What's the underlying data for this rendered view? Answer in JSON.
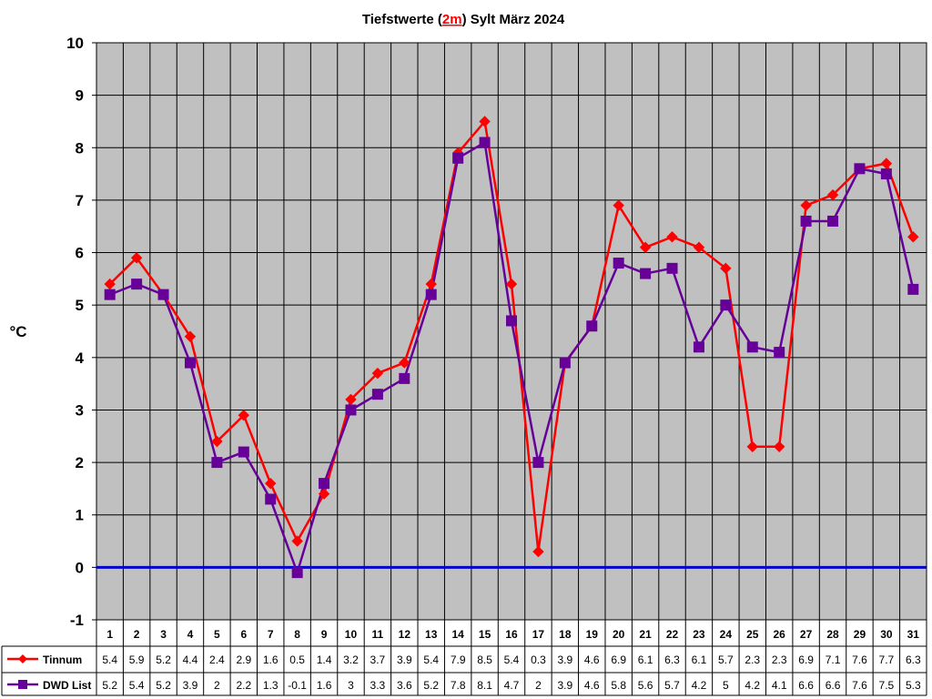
{
  "chart_data": {
    "type": "line",
    "title_parts": {
      "prefix": "Tiefstwerte (",
      "highlight": "2m",
      "suffix": ") Sylt März 2024"
    },
    "ylabel": "°C",
    "ylim": [
      -1,
      10
    ],
    "yticks": [
      -1,
      0,
      1,
      2,
      3,
      4,
      5,
      6,
      7,
      8,
      9,
      10
    ],
    "grid": true,
    "categories": [
      "1",
      "2",
      "3",
      "4",
      "5",
      "6",
      "7",
      "8",
      "9",
      "10",
      "11",
      "12",
      "13",
      "14",
      "15",
      "16",
      "17",
      "18",
      "19",
      "20",
      "21",
      "22",
      "23",
      "24",
      "25",
      "26",
      "27",
      "28",
      "29",
      "30",
      "31"
    ],
    "series": [
      {
        "name": "Tinnum",
        "color": "#ff0000",
        "marker": "diamond",
        "values": [
          5.4,
          5.9,
          5.2,
          4.4,
          2.4,
          2.9,
          1.6,
          0.5,
          1.4,
          3.2,
          3.7,
          3.9,
          5.4,
          7.9,
          8.5,
          5.4,
          0.3,
          3.9,
          4.6,
          6.9,
          6.1,
          6.3,
          6.1,
          5.7,
          2.3,
          2.3,
          6.9,
          7.1,
          7.6,
          7.7,
          6.3
        ]
      },
      {
        "name": "DWD List",
        "color": "#660099",
        "marker": "square",
        "values": [
          5.2,
          5.4,
          5.2,
          3.9,
          2,
          2.2,
          1.3,
          -0.1,
          1.6,
          3,
          3.3,
          3.6,
          5.2,
          7.8,
          8.1,
          4.7,
          2,
          3.9,
          4.6,
          5.8,
          5.6,
          5.7,
          4.2,
          5,
          4.2,
          4.1,
          6.6,
          6.6,
          7.6,
          7.5,
          5.3
        ]
      }
    ],
    "zero_line_color": "#0000cc",
    "plot_background": "#c0c0c0",
    "title_highlight_color": "#ff0000"
  }
}
